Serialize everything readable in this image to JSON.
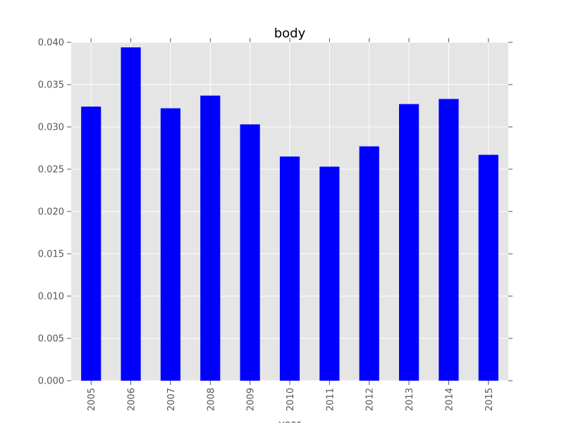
{
  "chart_data": {
    "type": "bar",
    "title": "body",
    "xlabel": "year",
    "ylabel": "",
    "categories": [
      "2005",
      "2006",
      "2007",
      "2008",
      "2009",
      "2010",
      "2011",
      "2012",
      "2013",
      "2014",
      "2015"
    ],
    "values": [
      0.0324,
      0.0394,
      0.0322,
      0.0337,
      0.0303,
      0.0265,
      0.0253,
      0.0277,
      0.0327,
      0.0333,
      0.0267
    ],
    "ylim": [
      0,
      0.04
    ],
    "yticks": [
      "0.000",
      "0.005",
      "0.010",
      "0.015",
      "0.020",
      "0.025",
      "0.030",
      "0.035",
      "0.040"
    ],
    "grid": true,
    "legend": "none",
    "colors": {
      "bar": "#0000ff",
      "background": "#e5e5e5",
      "grid": "#ffffff"
    }
  }
}
